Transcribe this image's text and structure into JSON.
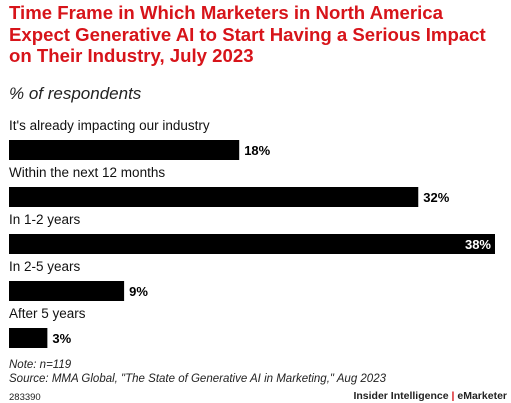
{
  "header": {
    "title": "Time Frame in Which Marketers in North America Expect Generative AI to Start Having a Serious Impact on Their Industry, July 2023",
    "subtitle": "% of respondents"
  },
  "chart_data": {
    "type": "bar",
    "orientation": "horizontal",
    "categories": [
      "It's already impacting our industry",
      "Within the next 12 months",
      "In 1-2 years",
      "In 2-5 years",
      "After 5 years"
    ],
    "values": [
      18,
      32,
      38,
      9,
      3
    ],
    "value_labels": [
      "18%",
      "32%",
      "38%",
      "9%",
      "3%"
    ],
    "xlim": [
      0,
      38
    ],
    "grid": false,
    "legend": "none",
    "bar_color": "#000000"
  },
  "footer": {
    "note": "Note: n=119",
    "source": "Source: MMA Global, \"The State of Generative AI in Marketing,\" Aug 2023",
    "chart_id": "283390",
    "brand_left": "Insider Intelligence",
    "brand_sep": "|",
    "brand_right": "eMarketer"
  }
}
